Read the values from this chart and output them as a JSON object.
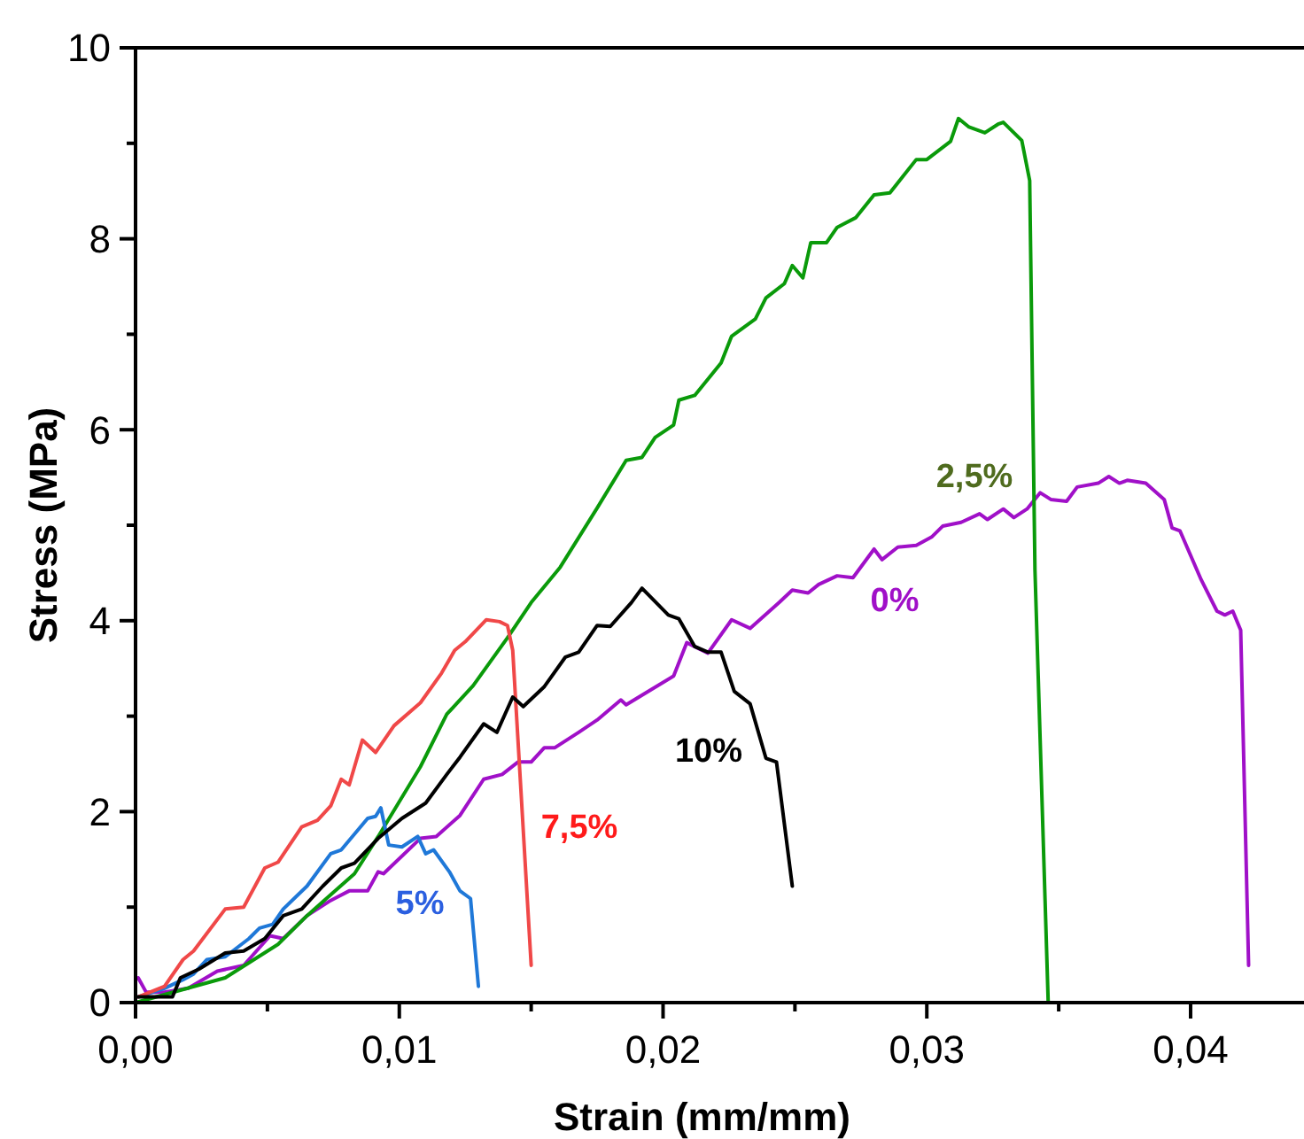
{
  "chart_data": {
    "type": "line",
    "xlabel": "Strain (mm/mm)",
    "ylabel": "Stress (MPa)",
    "xlim": [
      0,
      0.0443
    ],
    "ylim": [
      0,
      10
    ],
    "xticks": [
      {
        "value": 0,
        "label": "0,00"
      },
      {
        "value": 0.005,
        "label": null
      },
      {
        "value": 0.01,
        "label": "0,01"
      },
      {
        "value": 0.015,
        "label": null
      },
      {
        "value": 0.02,
        "label": "0,02"
      },
      {
        "value": 0.025,
        "label": null
      },
      {
        "value": 0.03,
        "label": "0,03"
      },
      {
        "value": 0.035,
        "label": null
      },
      {
        "value": 0.04,
        "label": "0,04"
      }
    ],
    "yticks": [
      0,
      {
        "value": 1,
        "label": null
      },
      2,
      {
        "value": 3,
        "label": null
      },
      4,
      {
        "value": 5,
        "label": null
      },
      6,
      {
        "value": 7,
        "label": null
      },
      8,
      {
        "value": 9,
        "label": null
      },
      10
    ],
    "grid": false,
    "legend": false,
    "marker": "none",
    "line_style": "solid",
    "series": [
      {
        "name": "0%",
        "color": "#a010c8",
        "x": [
          0.0001,
          0.0004,
          0.0011,
          0.002,
          0.0031,
          0.0041,
          0.0051,
          0.0056,
          0.0065,
          0.0074,
          0.0081,
          0.0088,
          0.0092,
          0.0094,
          0.0108,
          0.0114,
          0.0123,
          0.0132,
          0.0139,
          0.0145,
          0.015,
          0.0155,
          0.0159,
          0.0168,
          0.0175,
          0.0184,
          0.0186,
          0.0195,
          0.0204,
          0.0209,
          0.0217,
          0.0226,
          0.0233,
          0.0244,
          0.0249,
          0.0255,
          0.0259,
          0.0266,
          0.0272,
          0.028,
          0.0283,
          0.0289,
          0.0296,
          0.0302,
          0.0306,
          0.0313,
          0.032,
          0.0323,
          0.0329,
          0.0333,
          0.0338,
          0.0343,
          0.0347,
          0.0353,
          0.0357,
          0.0365,
          0.0369,
          0.0373,
          0.0376,
          0.0383,
          0.039,
          0.0393,
          0.0396,
          0.0404,
          0.041,
          0.0413,
          0.0416,
          0.0419,
          0.0422
        ],
        "values": [
          0.26,
          0.11,
          0.11,
          0.15,
          0.33,
          0.39,
          0.7,
          0.67,
          0.91,
          1.07,
          1.17,
          1.17,
          1.37,
          1.35,
          1.72,
          1.74,
          1.96,
          2.34,
          2.39,
          2.52,
          2.52,
          2.67,
          2.67,
          2.83,
          2.96,
          3.17,
          3.12,
          3.27,
          3.42,
          3.77,
          3.66,
          4.01,
          3.92,
          4.19,
          4.32,
          4.29,
          4.38,
          4.47,
          4.45,
          4.75,
          4.64,
          4.77,
          4.79,
          4.88,
          4.99,
          5.03,
          5.12,
          5.06,
          5.17,
          5.08,
          5.17,
          5.34,
          5.27,
          5.25,
          5.4,
          5.44,
          5.51,
          5.44,
          5.47,
          5.44,
          5.27,
          4.97,
          4.94,
          4.43,
          4.1,
          4.06,
          4.1,
          3.9,
          0.39
        ]
      },
      {
        "name": "2,5%",
        "color": "#0a9a0a",
        "x": [
          0,
          0.0034,
          0.0054,
          0.0065,
          0.0083,
          0.0092,
          0.0108,
          0.0118,
          0.0128,
          0.0141,
          0.015,
          0.0161,
          0.0175,
          0.0186,
          0.0192,
          0.0197,
          0.0204,
          0.0206,
          0.0212,
          0.0222,
          0.0226,
          0.0235,
          0.0239,
          0.0246,
          0.0249,
          0.0253,
          0.0256,
          0.0262,
          0.0266,
          0.0273,
          0.028,
          0.0286,
          0.0296,
          0.03,
          0.0309,
          0.0312,
          0.0316,
          0.0322,
          0.0327,
          0.0329,
          0.0336,
          0.0339,
          0.0341,
          0.0346
        ],
        "values": [
          0,
          0.26,
          0.61,
          0.91,
          1.35,
          1.74,
          2.47,
          3.02,
          3.32,
          3.82,
          4.19,
          4.56,
          5.18,
          5.68,
          5.71,
          5.92,
          6.05,
          6.31,
          6.36,
          6.7,
          6.98,
          7.16,
          7.38,
          7.53,
          7.72,
          7.59,
          7.96,
          7.96,
          8.12,
          8.22,
          8.46,
          8.48,
          8.83,
          8.83,
          9.02,
          9.26,
          9.17,
          9.11,
          9.2,
          9.22,
          9.03,
          8.61,
          4.53,
          0.02
        ]
      },
      {
        "name": "5%",
        "color": "#1f78d8",
        "x": [
          0.0001,
          0.0011,
          0.0018,
          0.0022,
          0.0027,
          0.0034,
          0.0043,
          0.0047,
          0.0052,
          0.0056,
          0.0065,
          0.0074,
          0.0078,
          0.0088,
          0.0091,
          0.0093,
          0.0096,
          0.0101,
          0.0107,
          0.011,
          0.0113,
          0.0119,
          0.0123,
          0.0127,
          0.013
        ],
        "values": [
          0.06,
          0.15,
          0.24,
          0.3,
          0.45,
          0.48,
          0.67,
          0.78,
          0.82,
          0.98,
          1.22,
          1.56,
          1.6,
          1.93,
          1.95,
          2.04,
          1.65,
          1.63,
          1.74,
          1.56,
          1.6,
          1.37,
          1.17,
          1.09,
          0.17
        ]
      },
      {
        "name": "7,5%",
        "color": "#f04848",
        "x": [
          0.0001,
          0.0011,
          0.0018,
          0.0022,
          0.0034,
          0.0041,
          0.0049,
          0.0054,
          0.0063,
          0.0069,
          0.0074,
          0.0078,
          0.0081,
          0.0086,
          0.0091,
          0.0098,
          0.0108,
          0.0116,
          0.0121,
          0.0125,
          0.0133,
          0.0138,
          0.0141,
          0.0143,
          0.015
        ],
        "values": [
          0.06,
          0.17,
          0.45,
          0.54,
          0.98,
          1.0,
          1.41,
          1.47,
          1.84,
          1.91,
          2.06,
          2.34,
          2.28,
          2.75,
          2.62,
          2.9,
          3.14,
          3.45,
          3.69,
          3.78,
          4.01,
          3.99,
          3.95,
          3.69,
          0.39
        ]
      },
      {
        "name": "10%",
        "color": "#000000",
        "x": [
          0.0001,
          0.0014,
          0.0017,
          0.0024,
          0.0034,
          0.0041,
          0.0049,
          0.0056,
          0.0063,
          0.0071,
          0.0078,
          0.0083,
          0.0092,
          0.0101,
          0.011,
          0.0118,
          0.0123,
          0.0132,
          0.0137,
          0.0143,
          0.0147,
          0.0155,
          0.0163,
          0.0168,
          0.0175,
          0.018,
          0.0188,
          0.0192,
          0.0202,
          0.0206,
          0.0212,
          0.0217,
          0.0222,
          0.0227,
          0.0233,
          0.0239,
          0.0243,
          0.0249
        ],
        "values": [
          0.06,
          0.06,
          0.26,
          0.35,
          0.52,
          0.54,
          0.67,
          0.91,
          0.98,
          1.22,
          1.41,
          1.46,
          1.72,
          1.93,
          2.09,
          2.39,
          2.57,
          2.92,
          2.83,
          3.2,
          3.1,
          3.31,
          3.62,
          3.67,
          3.95,
          3.94,
          4.19,
          4.34,
          4.06,
          4.02,
          3.73,
          3.67,
          3.67,
          3.26,
          3.13,
          2.56,
          2.52,
          1.22
        ]
      }
    ]
  }
}
